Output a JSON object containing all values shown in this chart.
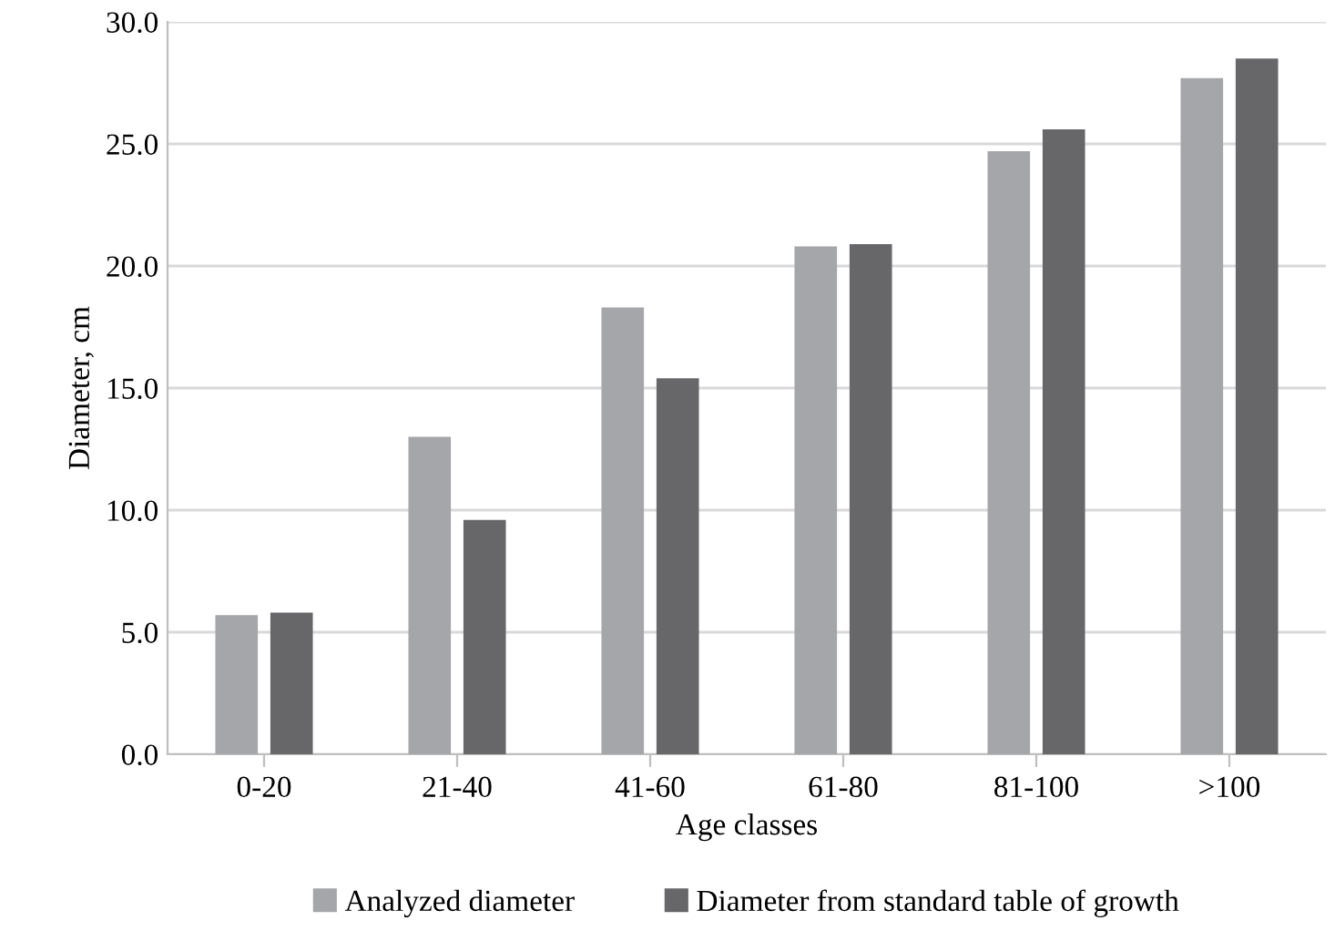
{
  "chart_data": {
    "type": "bar",
    "xlabel": "Age classes",
    "ylabel": "Diameter, cm",
    "categories": [
      "0-20",
      "21-40",
      "41-60",
      "61-80",
      "81-100",
      ">100"
    ],
    "series": [
      {
        "name": "Analyzed diameter",
        "color": "#a5a6aa",
        "values": [
          5.7,
          13.0,
          18.3,
          20.8,
          24.7,
          27.7
        ]
      },
      {
        "name": "Diameter from standard table of growth",
        "color": "#676769",
        "values": [
          5.8,
          9.6,
          15.4,
          20.9,
          25.6,
          28.5
        ]
      }
    ],
    "ylim": [
      0,
      30
    ],
    "yticks": [
      {
        "value": 0,
        "label": "0.0"
      },
      {
        "value": 5,
        "label": "5.0"
      },
      {
        "value": 10,
        "label": "10.0"
      },
      {
        "value": 15,
        "label": "15.0"
      },
      {
        "value": 20,
        "label": "20.0"
      },
      {
        "value": 25,
        "label": "25.0"
      },
      {
        "value": 30,
        "label": "30.0"
      }
    ],
    "grid": "y",
    "legend": "bottom"
  }
}
